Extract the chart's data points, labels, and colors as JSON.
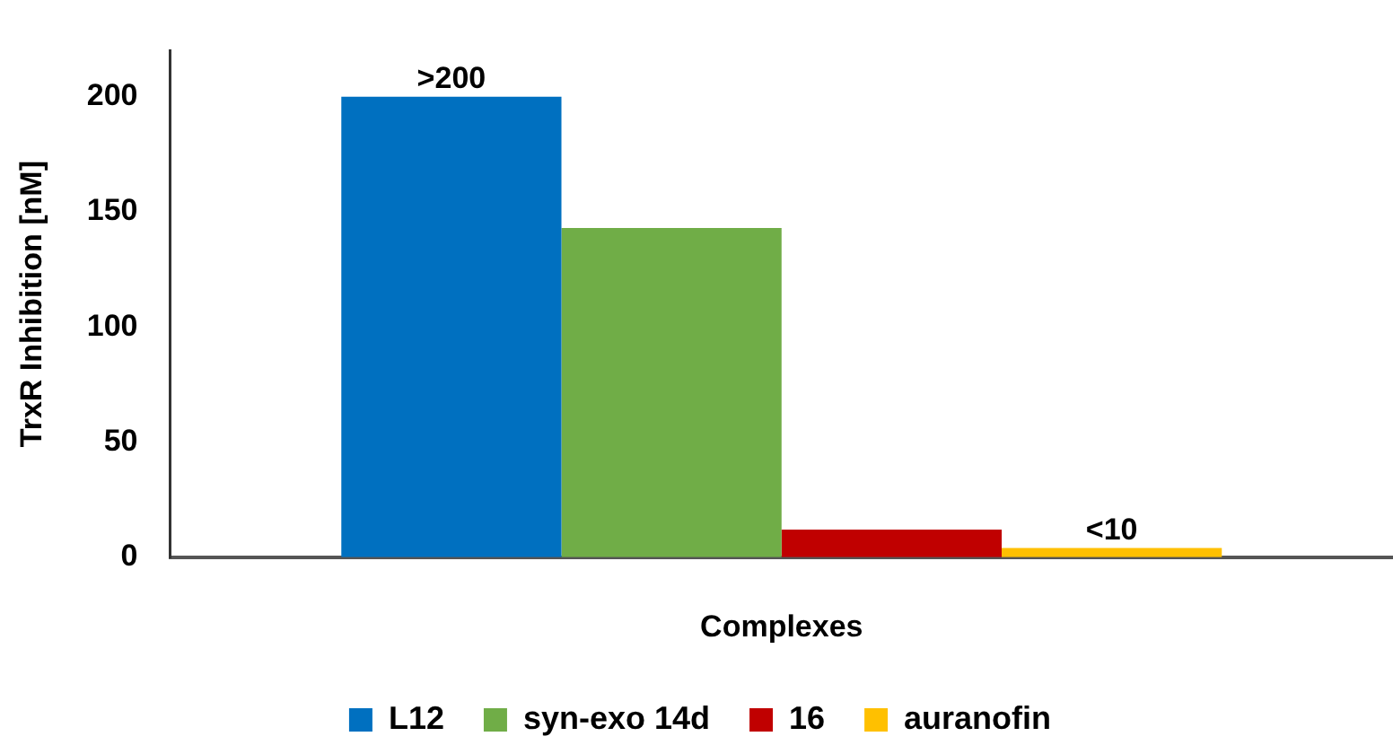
{
  "chart_data": {
    "type": "bar",
    "xlabel": "Complexes",
    "ylabel": "TrxR Inhibition [nM]",
    "categories": [
      null
    ],
    "series": [
      {
        "name": "L12",
        "color": "#0070c0",
        "values": [
          200
        ],
        "value_labels": [
          ">200"
        ]
      },
      {
        "name": "syn-exo 14d",
        "color": "#70ad47",
        "values": [
          143
        ]
      },
      {
        "name": "16",
        "color": "#c00000",
        "values": [
          12
        ]
      },
      {
        "name": "auranofin",
        "color": "#ffc000",
        "values": [
          4
        ],
        "value_labels": [
          "<10"
        ]
      }
    ],
    "ylim": [
      0,
      220
    ],
    "yticks": [
      0,
      50,
      100,
      150,
      200
    ],
    "grid": false,
    "legend": "bottom"
  }
}
